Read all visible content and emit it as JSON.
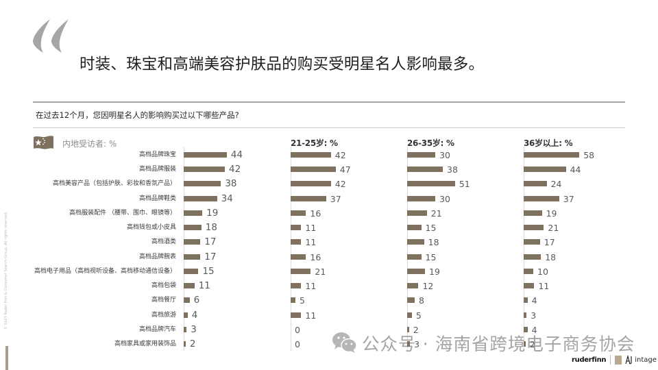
{
  "slide": {
    "quote_mark": "“",
    "title": "时装、珠宝和高端美容护肤品的购买受明星名人影响最多。",
    "question": "在过去12个月，您因明星名人的影响购买过以下哪些产品?",
    "copyright": "© 2023 Ruder Finn & Consumer Search Group. All rights reserved.",
    "flag_icon": "china-flag-icon"
  },
  "watermark": {
    "icon": "wechat-icon",
    "text": "公众号 · 海南省跨境电子商务协会"
  },
  "logos": {
    "ruderfinn": "ruderfinn",
    "intage": "intage"
  },
  "colors": {
    "bar": "#7f7160",
    "rule": "#a6a6a6",
    "axis": "#dcdcdc",
    "quote": "#a6a6a6",
    "value_text": "#595959"
  },
  "chart_data": {
    "type": "bar",
    "orientation": "horizontal",
    "title": "在过去12个月，您因明星名人的影响购买过以下哪些产品?",
    "xlabel": "",
    "ylabel": "",
    "unit": "%",
    "grid": false,
    "legend": "none",
    "categories": [
      "高档品牌珠宝",
      "高档品牌服装",
      "高档美容产品（包括护肤、彩妆和香氛产品）",
      "高档品牌鞋类",
      "高档服装配件 （腰带、围巾、眼镜等）",
      "高档钱包或小皮具",
      "高档酒类",
      "高档品牌腕表",
      "高档电子用品（高档视听设备、高档移动通信设备）",
      "高档包袋",
      "高档餐厅",
      "高档旅游",
      "高档品牌汽车",
      "高档家具或家用装饰品"
    ],
    "series": [
      {
        "name": "内地受访者: %",
        "values": [
          44,
          42,
          38,
          34,
          19,
          18,
          17,
          17,
          15,
          11,
          6,
          4,
          3,
          2
        ]
      },
      {
        "name": "21-25岁: %",
        "values": [
          42,
          47,
          42,
          37,
          16,
          11,
          11,
          16,
          21,
          11,
          5,
          11,
          0,
          0
        ]
      },
      {
        "name": "26-35岁: %",
        "values": [
          30,
          38,
          51,
          30,
          21,
          15,
          18,
          15,
          19,
          12,
          8,
          5,
          2,
          3
        ]
      },
      {
        "name": "36岁以上: %",
        "values": [
          58,
          44,
          24,
          37,
          19,
          21,
          17,
          18,
          10,
          11,
          4,
          3,
          4,
          2
        ]
      }
    ],
    "xlim": [
      0,
      60
    ]
  }
}
